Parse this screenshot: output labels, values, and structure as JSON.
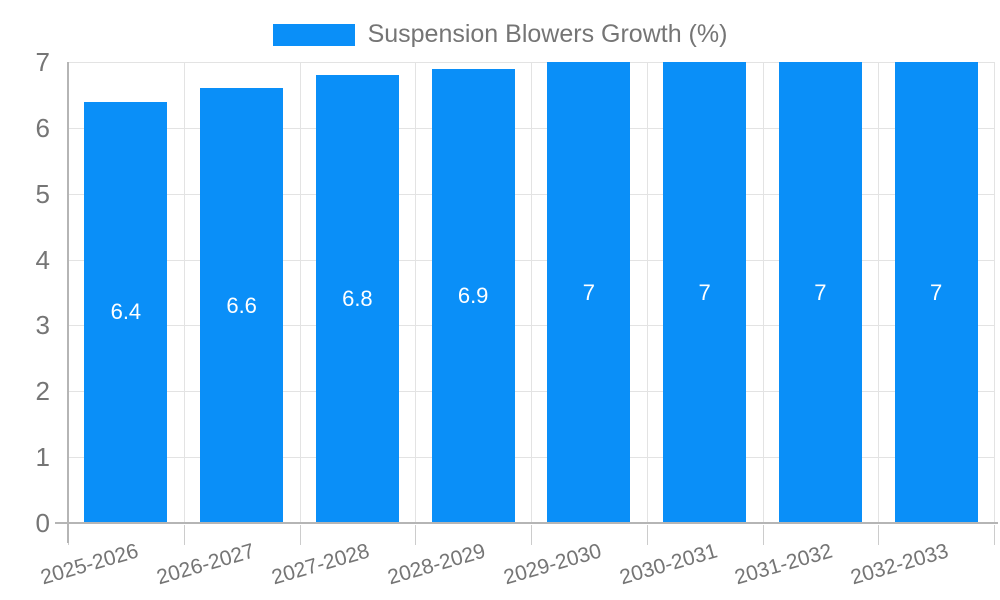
{
  "chart_data": {
    "type": "bar",
    "title": "Suspension Blowers Growth (%)",
    "categories": [
      "2025-2026",
      "2026-2027",
      "2027-2028",
      "2028-2029",
      "2029-2030",
      "2030-2031",
      "2031-2032",
      "2032-2033"
    ],
    "values": [
      6.4,
      6.6,
      6.8,
      6.9,
      7,
      7,
      7,
      7
    ],
    "bar_labels": [
      "6.4",
      "6.6",
      "6.8",
      "6.9",
      "7",
      "7",
      "7",
      "7"
    ],
    "series_name": "Suspension Blowers Growth (%)",
    "xlabel": "",
    "ylabel": "",
    "ylim": [
      0,
      7
    ],
    "yticks": [
      0,
      1,
      2,
      3,
      4,
      5,
      6,
      7
    ],
    "grid": true,
    "legend_position": "top",
    "colors": {
      "series": "#0a8ff8",
      "bar_label": "#ffffff",
      "axis_text": "#757575",
      "gridline": "#e3e3e3",
      "axis_line": "#b5b5b5",
      "tick": "#cccccc",
      "background": "#ffffff"
    }
  }
}
